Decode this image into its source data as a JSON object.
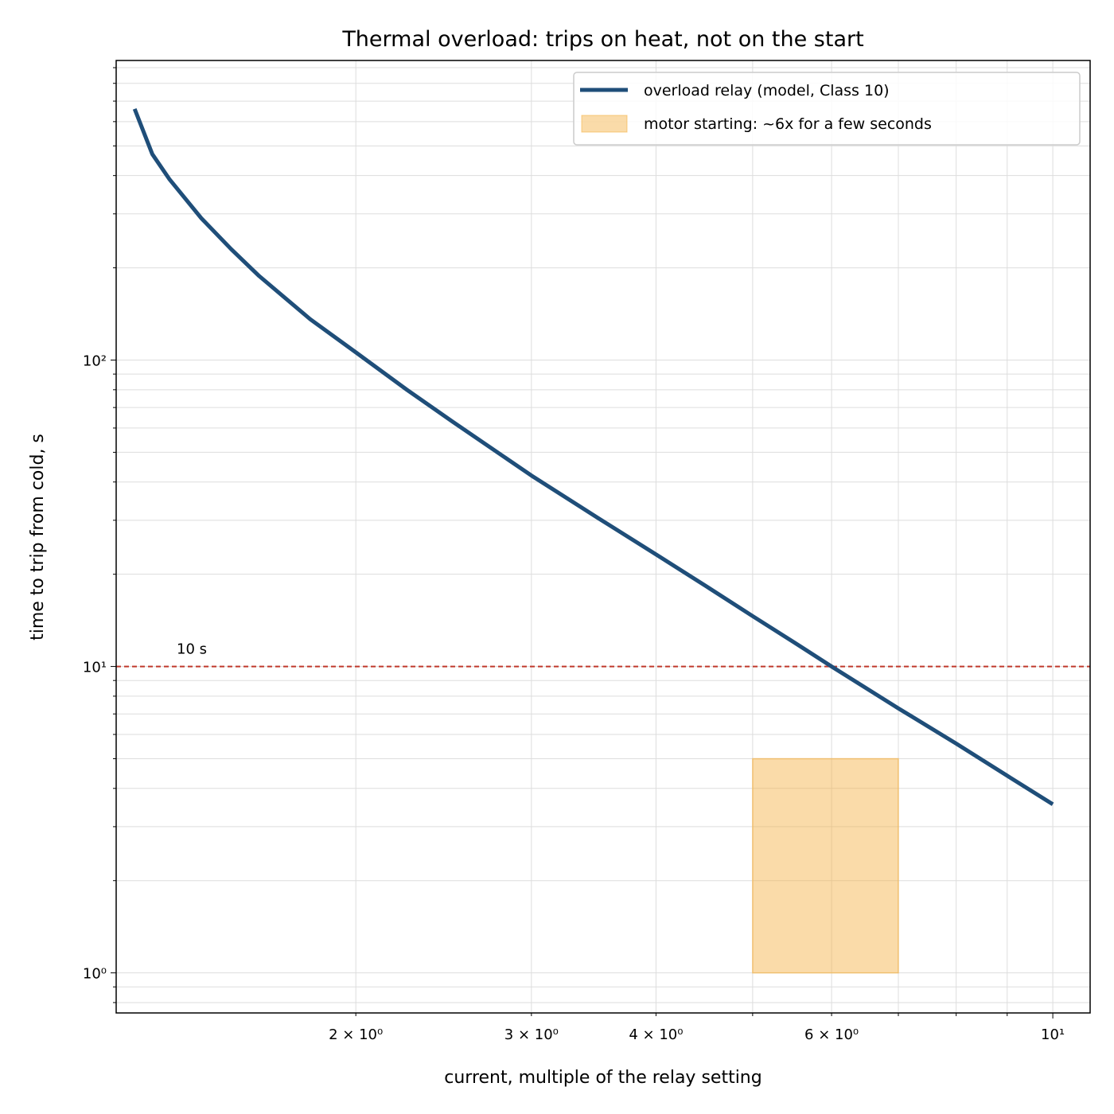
{
  "chart_data": {
    "type": "line",
    "title": "Thermal overload: trips on heat, not on the start",
    "xlabel": "current, multiple of the relay setting",
    "ylabel": "time to trip from cold, s",
    "xscale": "log",
    "yscale": "log",
    "xlim": [
      1.15,
      10.9
    ],
    "ylim": [
      0.74,
      950
    ],
    "grid": true,
    "legend_position": "top-right",
    "x_ticks": [
      {
        "value": 2,
        "label": "2 × 10⁰"
      },
      {
        "value": 3,
        "label": "3 × 10⁰"
      },
      {
        "value": 4,
        "label": "4 × 10⁰"
      },
      {
        "value": 6,
        "label": "6 × 10⁰"
      },
      {
        "value": 10,
        "label": "10¹"
      }
    ],
    "y_ticks": [
      {
        "value": 1,
        "label": "10⁰"
      },
      {
        "value": 10,
        "label": "10¹"
      },
      {
        "value": 100,
        "label": "10²"
      }
    ],
    "series": [
      {
        "name": "overload relay (model, Class 10)",
        "color": "#1f4e79",
        "x": [
          1.2,
          1.25,
          1.3,
          1.4,
          1.5,
          1.6,
          1.8,
          2.0,
          2.25,
          2.5,
          3.0,
          3.5,
          4.0,
          4.5,
          5.0,
          5.5,
          6.0,
          7.0,
          8.0,
          9.0,
          10.0
        ],
        "y": [
          660,
          470,
          390,
          290,
          230,
          188,
          136,
          106,
          80,
          63,
          42,
          30.5,
          23.2,
          18.2,
          14.6,
          12.0,
          10.0,
          7.3,
          5.6,
          4.4,
          3.55
        ]
      }
    ],
    "bands": [
      {
        "name": "motor starting: ~6x for a few seconds",
        "x": [
          5,
          7
        ],
        "y": [
          1,
          5
        ],
        "color": "#f5b041"
      }
    ],
    "reference_lines": [
      {
        "value": 10,
        "label": "10 s",
        "color": "#c0392b"
      }
    ]
  }
}
